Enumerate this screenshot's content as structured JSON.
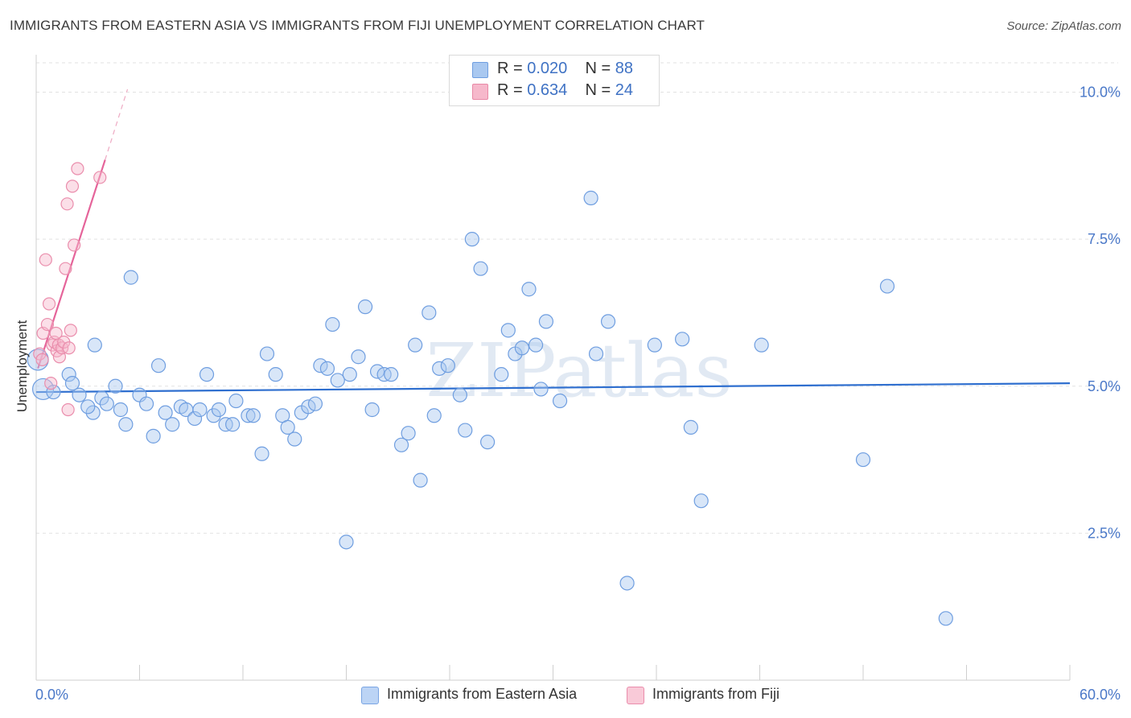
{
  "title": "IMMIGRANTS FROM EASTERN ASIA VS IMMIGRANTS FROM FIJI UNEMPLOYMENT CORRELATION CHART",
  "source": "Source: ZipAtlas.com",
  "watermark": "ZIPatlas",
  "legend": {
    "r_label": "R =",
    "n_label": "N =",
    "rows": [
      {
        "r": "0.020",
        "n": "88",
        "color": "#a9c8f0",
        "border": "#6f9ee0"
      },
      {
        "r": "0.634",
        "n": "24",
        "color": "#f6b8cb",
        "border": "#e889a6"
      }
    ]
  },
  "bottom_legend": [
    {
      "label": "Immigrants from Eastern Asia",
      "color": "#bcd4f5",
      "border": "#7aa5e3"
    },
    {
      "label": "Immigrants from Fiji",
      "color": "#f9cad8",
      "border": "#ea8dac"
    }
  ],
  "chart_data": {
    "type": "scatter",
    "title": "IMMIGRANTS FROM EASTERN ASIA VS IMMIGRANTS FROM FIJI UNEMPLOYMENT CORRELATION CHART",
    "xlabel": "",
    "ylabel": "Unemployment",
    "xlim": [
      0,
      60
    ],
    "ylim": [
      0,
      10.5
    ],
    "x_tick_labels": [
      "0.0%",
      "60.0%"
    ],
    "y_ticks": [
      2.5,
      5.0,
      7.5,
      10.0
    ],
    "y_tick_labels": [
      "2.5%",
      "5.0%",
      "7.5%",
      "10.0%"
    ],
    "grid": true,
    "legend_position": "top-center",
    "series": [
      {
        "name": "Immigrants from Eastern Asia",
        "color": "#6f9ee0",
        "trend": {
          "x": [
            0,
            60
          ],
          "y": [
            4.9,
            5.05
          ],
          "color": "#2f6fcf"
        },
        "points": [
          [
            0.1,
            5.45
          ],
          [
            0.4,
            4.95
          ],
          [
            1.0,
            4.9
          ],
          [
            1.9,
            5.2
          ],
          [
            2.1,
            5.05
          ],
          [
            2.5,
            4.85
          ],
          [
            3.3,
            4.55
          ],
          [
            3.0,
            4.65
          ],
          [
            3.4,
            5.7
          ],
          [
            3.8,
            4.8
          ],
          [
            4.1,
            4.7
          ],
          [
            4.6,
            5.0
          ],
          [
            4.9,
            4.6
          ],
          [
            5.2,
            4.35
          ],
          [
            5.5,
            6.85
          ],
          [
            6.0,
            4.85
          ],
          [
            6.4,
            4.7
          ],
          [
            6.8,
            4.15
          ],
          [
            7.1,
            5.35
          ],
          [
            7.5,
            4.55
          ],
          [
            7.9,
            4.35
          ],
          [
            8.4,
            4.65
          ],
          [
            8.7,
            4.6
          ],
          [
            9.2,
            4.45
          ],
          [
            9.5,
            4.6
          ],
          [
            9.9,
            5.2
          ],
          [
            10.3,
            4.5
          ],
          [
            10.6,
            4.6
          ],
          [
            11.0,
            4.35
          ],
          [
            11.4,
            4.35
          ],
          [
            11.6,
            4.75
          ],
          [
            12.3,
            4.5
          ],
          [
            12.6,
            4.5
          ],
          [
            13.1,
            3.85
          ],
          [
            13.4,
            5.55
          ],
          [
            13.9,
            5.2
          ],
          [
            14.3,
            4.5
          ],
          [
            14.6,
            4.3
          ],
          [
            15.0,
            4.1
          ],
          [
            15.4,
            4.55
          ],
          [
            15.8,
            4.65
          ],
          [
            16.2,
            4.7
          ],
          [
            16.5,
            5.35
          ],
          [
            16.9,
            5.3
          ],
          [
            17.2,
            6.05
          ],
          [
            17.5,
            5.1
          ],
          [
            18.0,
            2.35
          ],
          [
            18.2,
            5.2
          ],
          [
            18.7,
            5.5
          ],
          [
            19.1,
            6.35
          ],
          [
            19.5,
            4.6
          ],
          [
            19.8,
            5.25
          ],
          [
            20.2,
            5.2
          ],
          [
            20.6,
            5.2
          ],
          [
            21.2,
            4.0
          ],
          [
            21.6,
            4.2
          ],
          [
            22.0,
            5.7
          ],
          [
            22.3,
            3.4
          ],
          [
            22.8,
            6.25
          ],
          [
            23.1,
            4.5
          ],
          [
            23.4,
            5.3
          ],
          [
            23.9,
            5.35
          ],
          [
            24.6,
            4.85
          ],
          [
            24.9,
            4.25
          ],
          [
            25.3,
            7.5
          ],
          [
            25.8,
            7.0
          ],
          [
            26.2,
            4.05
          ],
          [
            27.0,
            5.2
          ],
          [
            27.4,
            5.95
          ],
          [
            27.8,
            5.55
          ],
          [
            28.2,
            5.65
          ],
          [
            28.6,
            6.65
          ],
          [
            29.0,
            5.7
          ],
          [
            29.3,
            4.95
          ],
          [
            29.6,
            6.1
          ],
          [
            30.4,
            4.75
          ],
          [
            32.2,
            8.2
          ],
          [
            32.5,
            5.55
          ],
          [
            33.2,
            6.1
          ],
          [
            34.3,
            1.65
          ],
          [
            35.9,
            5.7
          ],
          [
            37.5,
            5.8
          ],
          [
            38.0,
            4.3
          ],
          [
            38.6,
            3.05
          ],
          [
            42.1,
            5.7
          ],
          [
            48.0,
            3.75
          ],
          [
            49.4,
            6.7
          ],
          [
            52.8,
            1.05
          ]
        ]
      },
      {
        "name": "Immigrants from Fiji",
        "color": "#ea8dac",
        "trend": {
          "x": [
            0.1,
            4.0
          ],
          "y": [
            5.3,
            8.85
          ],
          "color": "#e5649a"
        },
        "trend_extension": {
          "x": [
            4.0,
            5.3
          ],
          "y": [
            8.85,
            10.05
          ]
        },
        "points": [
          [
            0.2,
            5.55
          ],
          [
            0.35,
            5.45
          ],
          [
            0.4,
            5.9
          ],
          [
            0.55,
            7.15
          ],
          [
            0.65,
            6.05
          ],
          [
            0.75,
            6.4
          ],
          [
            0.85,
            5.05
          ],
          [
            0.95,
            5.7
          ],
          [
            1.05,
            5.75
          ],
          [
            1.15,
            5.9
          ],
          [
            1.2,
            5.6
          ],
          [
            1.3,
            5.7
          ],
          [
            1.35,
            5.5
          ],
          [
            1.5,
            5.65
          ],
          [
            1.6,
            5.75
          ],
          [
            1.7,
            7.0
          ],
          [
            1.8,
            8.1
          ],
          [
            1.85,
            4.6
          ],
          [
            1.9,
            5.65
          ],
          [
            2.0,
            5.95
          ],
          [
            2.1,
            8.4
          ],
          [
            2.2,
            7.4
          ],
          [
            2.4,
            8.7
          ],
          [
            3.7,
            8.55
          ]
        ]
      }
    ]
  }
}
